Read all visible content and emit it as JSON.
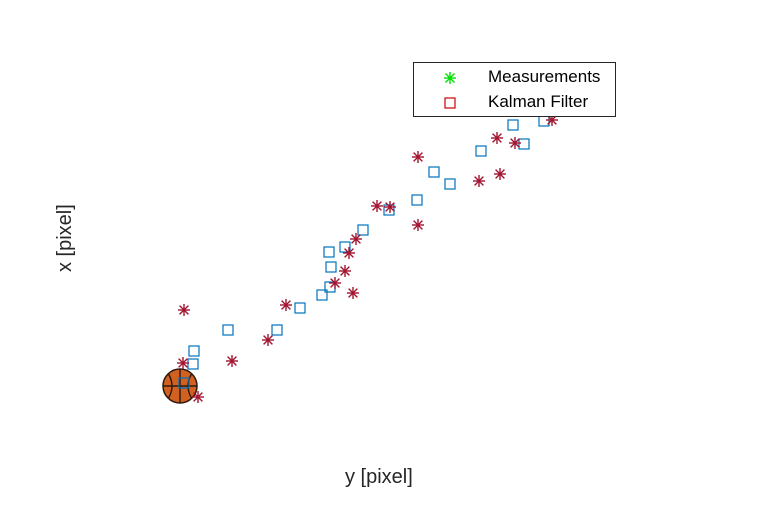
{
  "chart_data": {
    "type": "scatter",
    "title": "",
    "xlabel": "y [pixel]",
    "ylabel": "x [pixel]",
    "grid": false,
    "axes_visible": false,
    "legend_position": "top-right",
    "colors": {
      "measurement_marker": "#A2142F",
      "kalman_marker": "#0072BD",
      "legend_measurement": "#00E000",
      "legend_kalman": "#D00000",
      "ball_fill": "#D2601E",
      "ball_lines": "#2A1A10"
    },
    "series": [
      {
        "name": "Measurements",
        "marker": "asterisk",
        "points": [
          [
            184,
            310
          ],
          [
            183,
            363
          ],
          [
            198,
            397
          ],
          [
            232,
            361
          ],
          [
            268,
            340
          ],
          [
            286,
            305
          ],
          [
            335,
            283
          ],
          [
            345,
            271
          ],
          [
            349,
            253
          ],
          [
            353,
            293
          ],
          [
            356,
            239
          ],
          [
            377,
            206
          ],
          [
            390,
            207
          ],
          [
            418,
            157
          ],
          [
            418,
            225
          ],
          [
            479,
            181
          ],
          [
            497,
            138
          ],
          [
            500,
            174
          ],
          [
            515,
            143
          ],
          [
            552,
            120
          ]
        ]
      },
      {
        "name": "Kalman Filter",
        "marker": "square",
        "points": [
          [
            184,
            383
          ],
          [
            193,
            364
          ],
          [
            194,
            351
          ],
          [
            228,
            330
          ],
          [
            277,
            330
          ],
          [
            300,
            308
          ],
          [
            322,
            295
          ],
          [
            330,
            287
          ],
          [
            331,
            267
          ],
          [
            329,
            252
          ],
          [
            345,
            247
          ],
          [
            363,
            230
          ],
          [
            389,
            210
          ],
          [
            417,
            200
          ],
          [
            434,
            172
          ],
          [
            450,
            184
          ],
          [
            481,
            151
          ],
          [
            513,
            125
          ],
          [
            524,
            144
          ],
          [
            544,
            121
          ]
        ]
      }
    ],
    "annotations": [
      {
        "type": "image",
        "description": "basketball",
        "at": [
          180,
          386
        ]
      }
    ]
  }
}
